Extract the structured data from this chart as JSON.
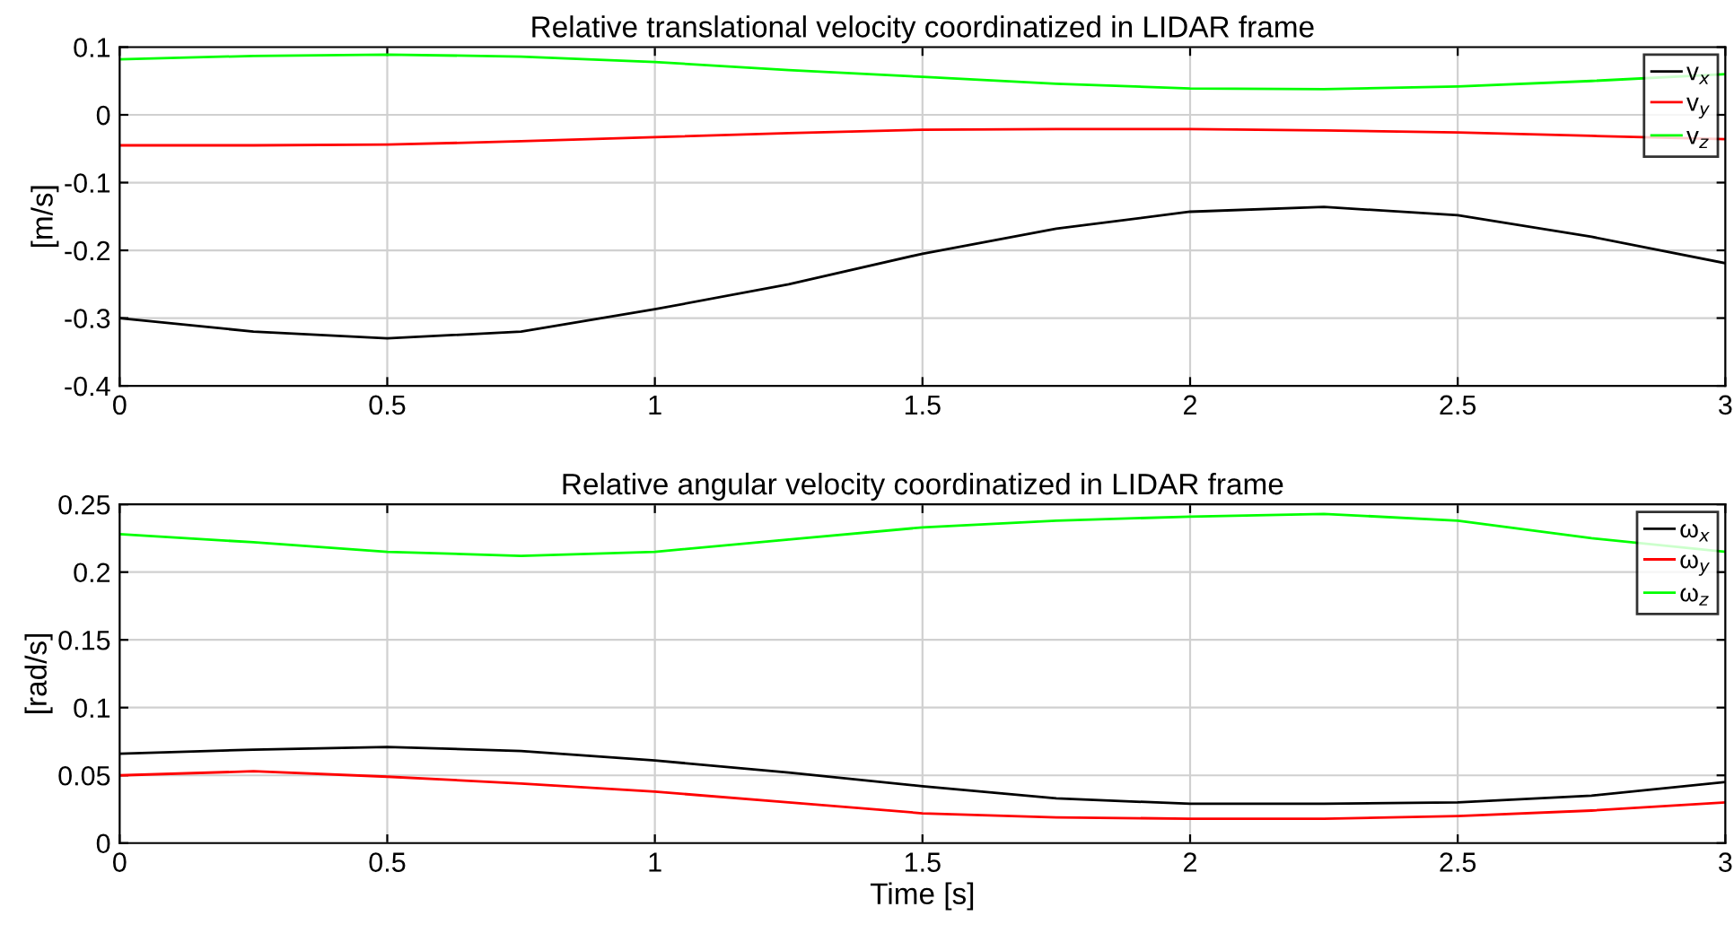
{
  "chart_data": [
    {
      "type": "line",
      "title": "Relative translational velocity coordinatized in LIDAR frame",
      "ylabel": "[m/s]",
      "xlim": [
        0,
        3
      ],
      "ylim": [
        -0.4,
        0.1
      ],
      "xticks": [
        0,
        0.5,
        1,
        1.5,
        2,
        2.5,
        3
      ],
      "yticks": [
        -0.4,
        -0.3,
        -0.2,
        -0.1,
        0,
        0.1
      ],
      "grid": true,
      "legend": "top right",
      "x": [
        0,
        0.25,
        0.5,
        0.75,
        1,
        1.25,
        1.5,
        1.75,
        2,
        2.25,
        2.5,
        2.75,
        3
      ],
      "series": [
        {
          "name": "v$_{x}$",
          "color": "#000000",
          "values": [
            -0.3,
            -0.32,
            -0.33,
            -0.32,
            -0.287,
            -0.25,
            -0.205,
            -0.168,
            -0.143,
            -0.136,
            -0.148,
            -0.18,
            -0.219
          ]
        },
        {
          "name": "v$_{y}$",
          "color": "#ff0000",
          "values": [
            -0.045,
            -0.045,
            -0.044,
            -0.039,
            -0.033,
            -0.027,
            -0.022,
            -0.021,
            -0.021,
            -0.023,
            -0.026,
            -0.031,
            -0.036
          ]
        },
        {
          "name": "v$_{z}$",
          "color": "#00ff00",
          "values": [
            0.082,
            0.087,
            0.089,
            0.086,
            0.078,
            0.066,
            0.056,
            0.046,
            0.039,
            0.038,
            0.042,
            0.05,
            0.06
          ]
        }
      ]
    },
    {
      "type": "line",
      "title": "Relative angular velocity coordinatized in LIDAR frame",
      "xlabel": "Time [s]",
      "ylabel": "[rad/s]",
      "xlim": [
        0,
        3
      ],
      "ylim": [
        0,
        0.25
      ],
      "xticks": [
        0,
        0.5,
        1,
        1.5,
        2,
        2.5,
        3
      ],
      "yticks": [
        0,
        0.05,
        0.1,
        0.15,
        0.2,
        0.25
      ],
      "grid": true,
      "legend": "top right",
      "x": [
        0,
        0.25,
        0.5,
        0.75,
        1,
        1.25,
        1.5,
        1.75,
        2,
        2.25,
        2.5,
        2.75,
        3
      ],
      "series": [
        {
          "name": "ω$_{x}$",
          "color": "#000000",
          "values": [
            0.066,
            0.069,
            0.071,
            0.068,
            0.061,
            0.052,
            0.042,
            0.033,
            0.029,
            0.029,
            0.03,
            0.035,
            0.045
          ]
        },
        {
          "name": "ω$_{y}$",
          "color": "#ff0000",
          "values": [
            0.05,
            0.053,
            0.049,
            0.044,
            0.038,
            0.03,
            0.022,
            0.019,
            0.018,
            0.018,
            0.02,
            0.024,
            0.03
          ]
        },
        {
          "name": "ω$_{z}$",
          "color": "#00ff00",
          "values": [
            0.228,
            0.222,
            0.215,
            0.212,
            0.215,
            0.224,
            0.233,
            0.238,
            0.241,
            0.243,
            0.238,
            0.225,
            0.215
          ]
        }
      ]
    }
  ]
}
